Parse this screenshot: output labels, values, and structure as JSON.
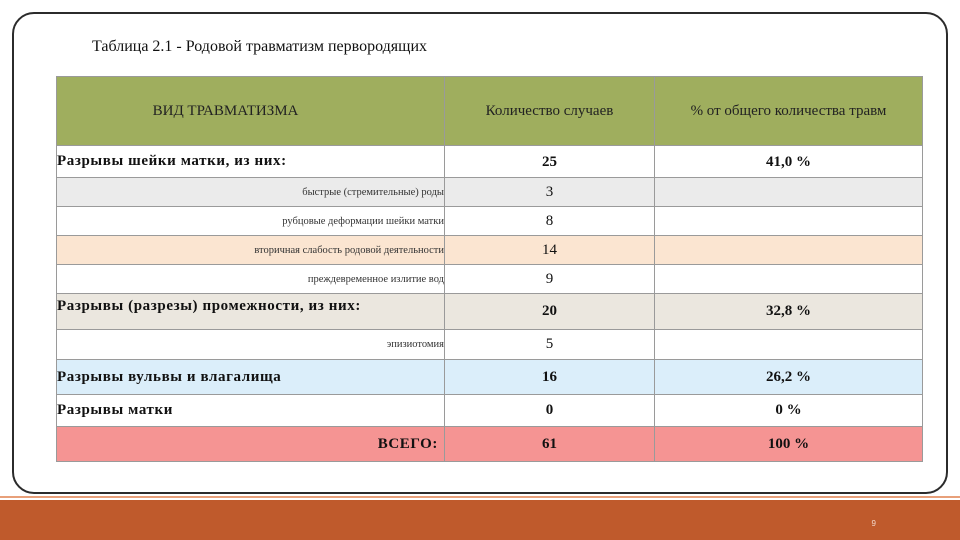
{
  "caption": "Таблица 2.1 - Родовой травматизм первородящих",
  "table": {
    "headers": {
      "type": "ВИД ТРАВМАТИЗМА",
      "count": "Количество случаев",
      "percent": "% от общего количества травм"
    },
    "rows": [
      {
        "label": "Разрывы шейки матки, из них:",
        "count": "25",
        "percent": "41,0 %"
      },
      {
        "label": "быстрые (стремительные) роды",
        "count": "3",
        "percent": ""
      },
      {
        "label": "рубцовые деформации шейки матки",
        "count": "8",
        "percent": ""
      },
      {
        "label": "вторичная слабость родовой деятельности",
        "count": "14",
        "percent": ""
      },
      {
        "label": "преждевременное излитие вод",
        "count": "9",
        "percent": ""
      },
      {
        "label": "Разрывы (разрезы) промежности, из них:",
        "count": "20",
        "percent": "32,8 %"
      },
      {
        "label": "эпизиотомия",
        "count": "5",
        "percent": ""
      },
      {
        "label": "Разрывы вульвы и влагалища",
        "count": "16",
        "percent": "26,2 %"
      },
      {
        "label": "Разрывы матки",
        "count": "0",
        "percent": "0 %"
      },
      {
        "label": "ВСЕГО:",
        "count": "61",
        "percent": "100 %"
      }
    ]
  },
  "page_number": "9"
}
